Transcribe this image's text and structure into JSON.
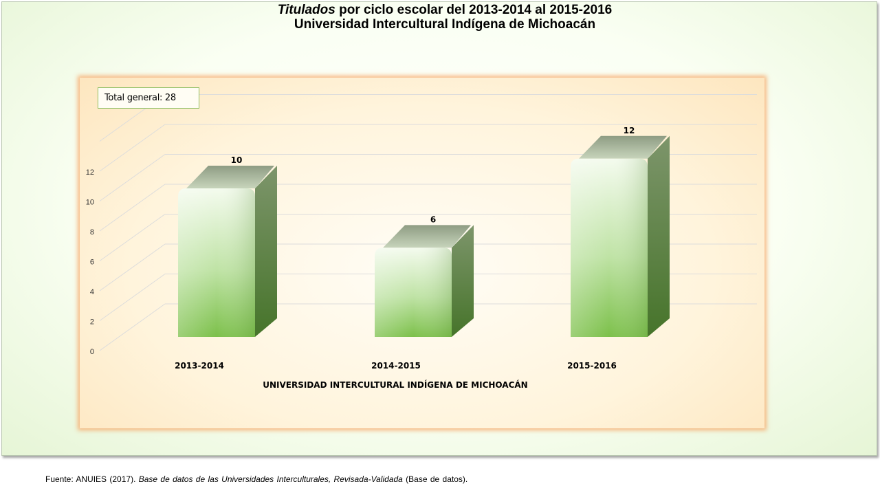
{
  "title": {
    "line1_italic": "Titulados",
    "line1_rest": " por ciclo escolar del 2013-2014 al 2015-2016",
    "line2": "Universidad Intercultural Indígena de Michoacán"
  },
  "total_label": "Total general: 28",
  "footer": {
    "prefix": "Fuente: ANUIES (2017). ",
    "italic": "Base de datos de las Universidades Interculturales, Revisada-Validada",
    "suffix": " (Base de datos)."
  },
  "chart_data": {
    "type": "bar",
    "categories": [
      "2013-2014",
      "2014-2015",
      "2015-2016"
    ],
    "values": [
      10,
      6,
      12
    ],
    "xlabel": "UNIVERSIDAD INTERCULTURAL INDÍGENA DE MICHOACÁN",
    "ylabel": "",
    "ylim": [
      0,
      14
    ],
    "yticks": [
      0,
      2,
      4,
      6,
      8,
      10,
      12
    ],
    "grid": true,
    "style": "3d-column",
    "colors": {
      "bar_top": "#f4fbee",
      "bar_bottom": "#7cc04a",
      "bar_side": "#4f7d31",
      "bar_cap": "#9aa98d"
    }
  }
}
